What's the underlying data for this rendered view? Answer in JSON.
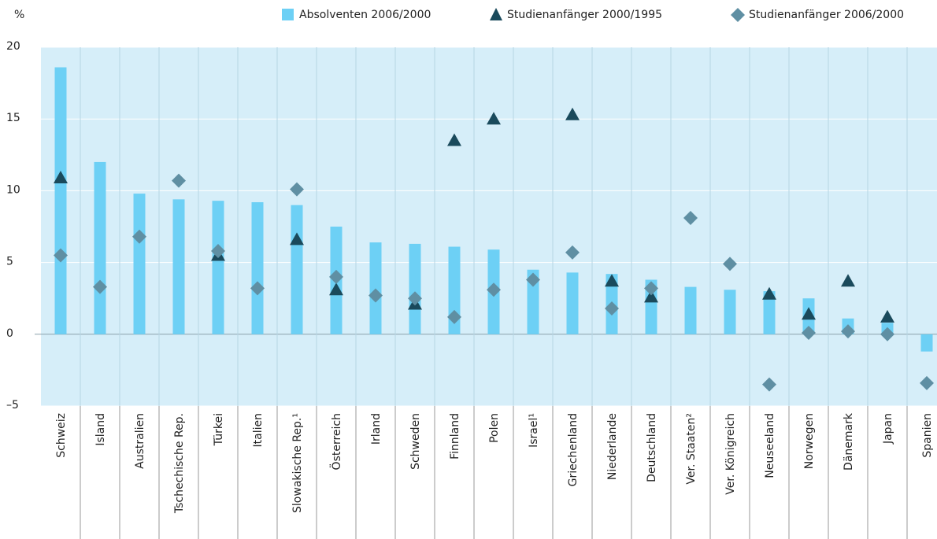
{
  "chart_data": {
    "type": "bar",
    "y_label": "%",
    "categories": [
      "Schweiz",
      "Island",
      "Australien",
      "Tschechische Rep.",
      "Türkei",
      "Italien",
      "Slowakische Rep.¹",
      "Österreich",
      "Irland",
      "Schweden",
      "Finnland",
      "Polen",
      "Israel¹",
      "Griechenland",
      "Niederlande",
      "Deutschland",
      "Ver. Staaten²",
      "Ver. Königreich",
      "Neuseeland",
      "Norwegen",
      "Dänemark",
      "Japan",
      "Spanien"
    ],
    "series": [
      {
        "name": "Absolventen 2006/2000",
        "type": "bar",
        "color": "#6dd0f5",
        "values": [
          18.6,
          12.0,
          9.8,
          9.4,
          9.3,
          9.2,
          9.0,
          7.5,
          6.4,
          6.3,
          6.1,
          5.9,
          4.5,
          4.3,
          4.2,
          3.8,
          3.3,
          3.1,
          3.0,
          2.5,
          1.1,
          0.8,
          -1.2
        ]
      },
      {
        "name": "Studienanfänger 2000/1995",
        "type": "triangle",
        "color": "#1a4a5c",
        "values": [
          10.9,
          null,
          null,
          null,
          5.5,
          null,
          6.6,
          3.1,
          null,
          2.1,
          13.5,
          15.0,
          null,
          15.3,
          3.7,
          2.6,
          null,
          null,
          2.8,
          1.4,
          3.7,
          1.2,
          null
        ]
      },
      {
        "name": "Studienanfänger 2006/2000",
        "type": "diamond",
        "color": "#5f8fa3",
        "values": [
          5.5,
          3.3,
          6.8,
          10.7,
          5.8,
          3.2,
          10.1,
          4.0,
          2.7,
          2.5,
          1.2,
          3.1,
          3.8,
          5.7,
          1.8,
          3.2,
          8.1,
          4.9,
          -3.5,
          0.1,
          0.2,
          0.0,
          -3.4
        ]
      }
    ],
    "ylim": [
      -5,
      20
    ],
    "yticks": [
      {
        "value": -5,
        "label": "–5"
      },
      0,
      5,
      10,
      15,
      20
    ],
    "grid": true,
    "background": "#d6eef9"
  }
}
